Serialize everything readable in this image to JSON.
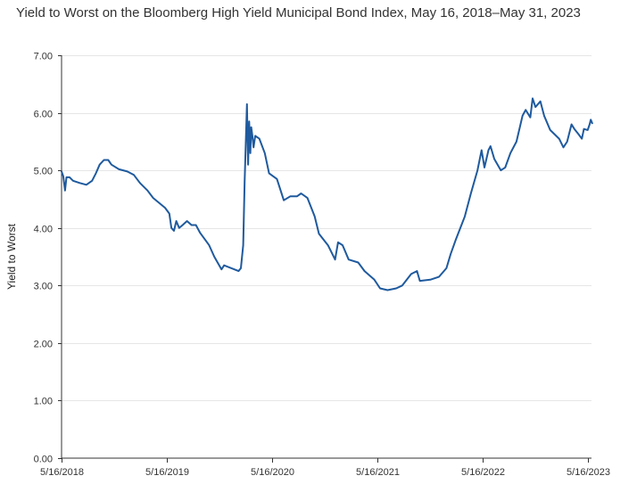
{
  "chart_data": {
    "type": "line",
    "title": "Yield to Worst on the Bloomberg High Yield Municipal Bond Index, May 16, 2018–May 31, 2023",
    "xlabel": "",
    "ylabel": "Yield to Worst",
    "xlim": [
      "2018-05-16",
      "2023-05-31"
    ],
    "ylim": [
      0,
      7
    ],
    "grid": true,
    "x_ticks": [
      "5/16/2018",
      "5/16/2019",
      "5/16/2020",
      "5/16/2021",
      "5/16/2022",
      "5/16/2023"
    ],
    "y_ticks": [
      "0.00",
      "1.00",
      "2.00",
      "3.00",
      "4.00",
      "5.00",
      "6.00",
      "7.00"
    ],
    "colors": {
      "line": "#1f5a9e",
      "grid": "#e6e6e6",
      "axis": "#333333"
    },
    "series": [
      {
        "values": [
          [
            "2018-05-16",
            4.98
          ],
          [
            "2018-05-22",
            4.9
          ],
          [
            "2018-05-28",
            4.65
          ],
          [
            "2018-06-02",
            4.88
          ],
          [
            "2018-06-13",
            4.88
          ],
          [
            "2018-06-25",
            4.82
          ],
          [
            "2018-07-18",
            4.78
          ],
          [
            "2018-08-10",
            4.75
          ],
          [
            "2018-08-30",
            4.82
          ],
          [
            "2018-09-12",
            4.95
          ],
          [
            "2018-09-25",
            5.1
          ],
          [
            "2018-10-10",
            5.18
          ],
          [
            "2018-10-25",
            5.18
          ],
          [
            "2018-11-05",
            5.1
          ],
          [
            "2018-12-01",
            5.02
          ],
          [
            "2018-12-30",
            4.98
          ],
          [
            "2019-01-22",
            4.92
          ],
          [
            "2019-02-12",
            4.78
          ],
          [
            "2019-03-10",
            4.65
          ],
          [
            "2019-03-30",
            4.52
          ],
          [
            "2019-05-10",
            4.35
          ],
          [
            "2019-05-25",
            4.25
          ],
          [
            "2019-06-01",
            4.0
          ],
          [
            "2019-06-10",
            3.95
          ],
          [
            "2019-06-18",
            4.12
          ],
          [
            "2019-06-28",
            4.0
          ],
          [
            "2019-07-10",
            4.05
          ],
          [
            "2019-07-25",
            4.12
          ],
          [
            "2019-08-10",
            4.05
          ],
          [
            "2019-08-25",
            4.05
          ],
          [
            "2019-09-08",
            3.92
          ],
          [
            "2019-10-10",
            3.7
          ],
          [
            "2019-10-28",
            3.5
          ],
          [
            "2019-11-22",
            3.28
          ],
          [
            "2019-12-01",
            3.35
          ],
          [
            "2020-01-20",
            3.25
          ],
          [
            "2020-01-28",
            3.3
          ],
          [
            "2020-02-05",
            3.7
          ],
          [
            "2020-02-10",
            4.8
          ],
          [
            "2020-02-18",
            6.15
          ],
          [
            "2020-02-22",
            5.1
          ],
          [
            "2020-02-26",
            5.85
          ],
          [
            "2020-03-01",
            5.3
          ],
          [
            "2020-03-04",
            5.75
          ],
          [
            "2020-03-08",
            5.6
          ],
          [
            "2020-03-12",
            5.4
          ],
          [
            "2020-03-18",
            5.6
          ],
          [
            "2020-04-01",
            5.55
          ],
          [
            "2020-04-20",
            5.3
          ],
          [
            "2020-05-05",
            4.95
          ],
          [
            "2020-06-01",
            4.85
          ],
          [
            "2020-06-25",
            4.48
          ],
          [
            "2020-07-18",
            4.55
          ],
          [
            "2020-08-10",
            4.55
          ],
          [
            "2020-08-24",
            4.6
          ],
          [
            "2020-09-15",
            4.52
          ],
          [
            "2020-10-10",
            4.2
          ],
          [
            "2020-10-25",
            3.9
          ],
          [
            "2020-11-25",
            3.7
          ],
          [
            "2020-12-20",
            3.45
          ],
          [
            "2020-12-30",
            3.75
          ],
          [
            "2021-01-15",
            3.7
          ],
          [
            "2021-02-05",
            3.45
          ],
          [
            "2021-03-10",
            3.4
          ],
          [
            "2021-04-01",
            3.25
          ],
          [
            "2021-05-05",
            3.1
          ],
          [
            "2021-05-25",
            2.95
          ],
          [
            "2021-06-20",
            2.92
          ],
          [
            "2021-07-20",
            2.95
          ],
          [
            "2021-08-10",
            3.0
          ],
          [
            "2021-09-10",
            3.2
          ],
          [
            "2021-09-30",
            3.25
          ],
          [
            "2021-10-10",
            3.08
          ],
          [
            "2021-11-15",
            3.1
          ],
          [
            "2021-12-15",
            3.15
          ],
          [
            "2022-01-10",
            3.3
          ],
          [
            "2022-01-25",
            3.55
          ],
          [
            "2022-02-12",
            3.8
          ],
          [
            "2022-03-15",
            4.2
          ],
          [
            "2022-04-05",
            4.6
          ],
          [
            "2022-04-28",
            5.0
          ],
          [
            "2022-05-12",
            5.35
          ],
          [
            "2022-05-22",
            5.05
          ],
          [
            "2022-06-05",
            5.35
          ],
          [
            "2022-06-12",
            5.42
          ],
          [
            "2022-06-25",
            5.2
          ],
          [
            "2022-07-18",
            5.0
          ],
          [
            "2022-08-02",
            5.05
          ],
          [
            "2022-08-20",
            5.3
          ],
          [
            "2022-09-10",
            5.5
          ],
          [
            "2022-10-01",
            5.95
          ],
          [
            "2022-10-12",
            6.05
          ],
          [
            "2022-10-28",
            5.92
          ],
          [
            "2022-11-05",
            6.25
          ],
          [
            "2022-11-15",
            6.1
          ],
          [
            "2022-12-02",
            6.2
          ],
          [
            "2022-12-15",
            5.95
          ],
          [
            "2023-01-05",
            5.7
          ],
          [
            "2023-02-05",
            5.55
          ],
          [
            "2023-02-20",
            5.4
          ],
          [
            "2023-03-05",
            5.5
          ],
          [
            "2023-03-20",
            5.8
          ],
          [
            "2023-03-30",
            5.72
          ],
          [
            "2023-04-10",
            5.65
          ],
          [
            "2023-04-25",
            5.55
          ],
          [
            "2023-05-02",
            5.72
          ],
          [
            "2023-05-15",
            5.7
          ],
          [
            "2023-05-22",
            5.8
          ],
          [
            "2023-05-26",
            5.88
          ],
          [
            "2023-05-31",
            5.82
          ]
        ]
      }
    ]
  }
}
